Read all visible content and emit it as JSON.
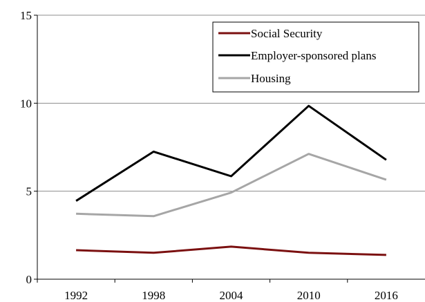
{
  "chart_data": {
    "type": "line",
    "categories": [
      "1992",
      "1998",
      "2004",
      "2010",
      "2016"
    ],
    "ylim": [
      0,
      15
    ],
    "yticks": [
      0,
      5,
      10,
      15
    ],
    "grid": true,
    "legend_position": "top-right",
    "series": [
      {
        "name": "Social Security",
        "color": "#7b1010",
        "values": [
          1.65,
          1.5,
          1.85,
          1.5,
          1.38
        ]
      },
      {
        "name": "Employer-sponsored plans",
        "color": "#000000",
        "values": [
          4.45,
          7.25,
          5.85,
          9.85,
          6.78
        ]
      },
      {
        "name": "Housing",
        "color": "#a6a6a6",
        "values": [
          3.72,
          3.58,
          4.92,
          7.12,
          5.65
        ]
      }
    ]
  }
}
